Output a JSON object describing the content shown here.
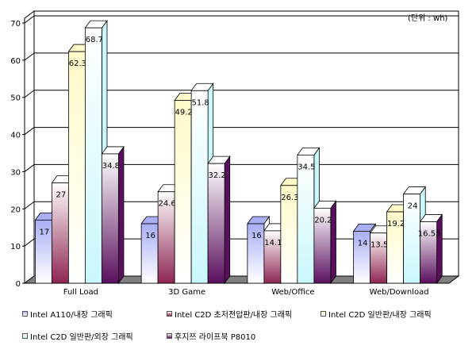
{
  "chart_data": {
    "type": "bar",
    "unit_note": "(단위 : wh)",
    "categories": [
      "Full Load",
      "3D Game",
      "Web/Office",
      "Web/Download"
    ],
    "yticks": [
      "0",
      "10",
      "20",
      "30",
      "40",
      "50",
      "60",
      "70"
    ],
    "ylim": [
      0,
      70
    ],
    "grid": true,
    "series": [
      {
        "name": "Intel A110/내장 그래픽",
        "values": [
          17,
          16,
          16,
          14
        ],
        "labels": [
          "17",
          "16",
          "16",
          "14"
        ],
        "color_top": "#a9aef5",
        "color_bottom": "#ffffff"
      },
      {
        "name": "Intel C2D 초저전압판/내장 그래픽",
        "values": [
          27,
          24.6,
          14.1,
          13.5
        ],
        "labels": [
          "27",
          "24.6",
          "14.1",
          "13.5"
        ],
        "color_top": "#ffffff",
        "color_bottom": "#8e2652"
      },
      {
        "name": "Intel C2D 일반판/내장 그래픽",
        "values": [
          62.3,
          49.2,
          26.3,
          19.2
        ],
        "labels": [
          "62.3",
          "49.2",
          "26.3",
          "19.2"
        ],
        "color_top": "#fffac8",
        "color_bottom": "#ffffff"
      },
      {
        "name": "Intel C2D 일반판/외장 그래픽",
        "values": [
          68.7,
          51.8,
          34.5,
          24
        ],
        "labels": [
          "68.7",
          "51.8",
          "34.5",
          "24"
        ],
        "color_top": "#ffffff",
        "color_bottom": "#c9f7fb"
      },
      {
        "name": "후지쯔 라이프북 P8010",
        "values": [
          34.8,
          32.2,
          20.2,
          16.55
        ],
        "labels": [
          "34.8",
          "32.2",
          "20.2",
          "16.55"
        ],
        "color_top": "#ffffff",
        "color_bottom": "#5a0f5e"
      }
    ],
    "legend": "bottom"
  }
}
